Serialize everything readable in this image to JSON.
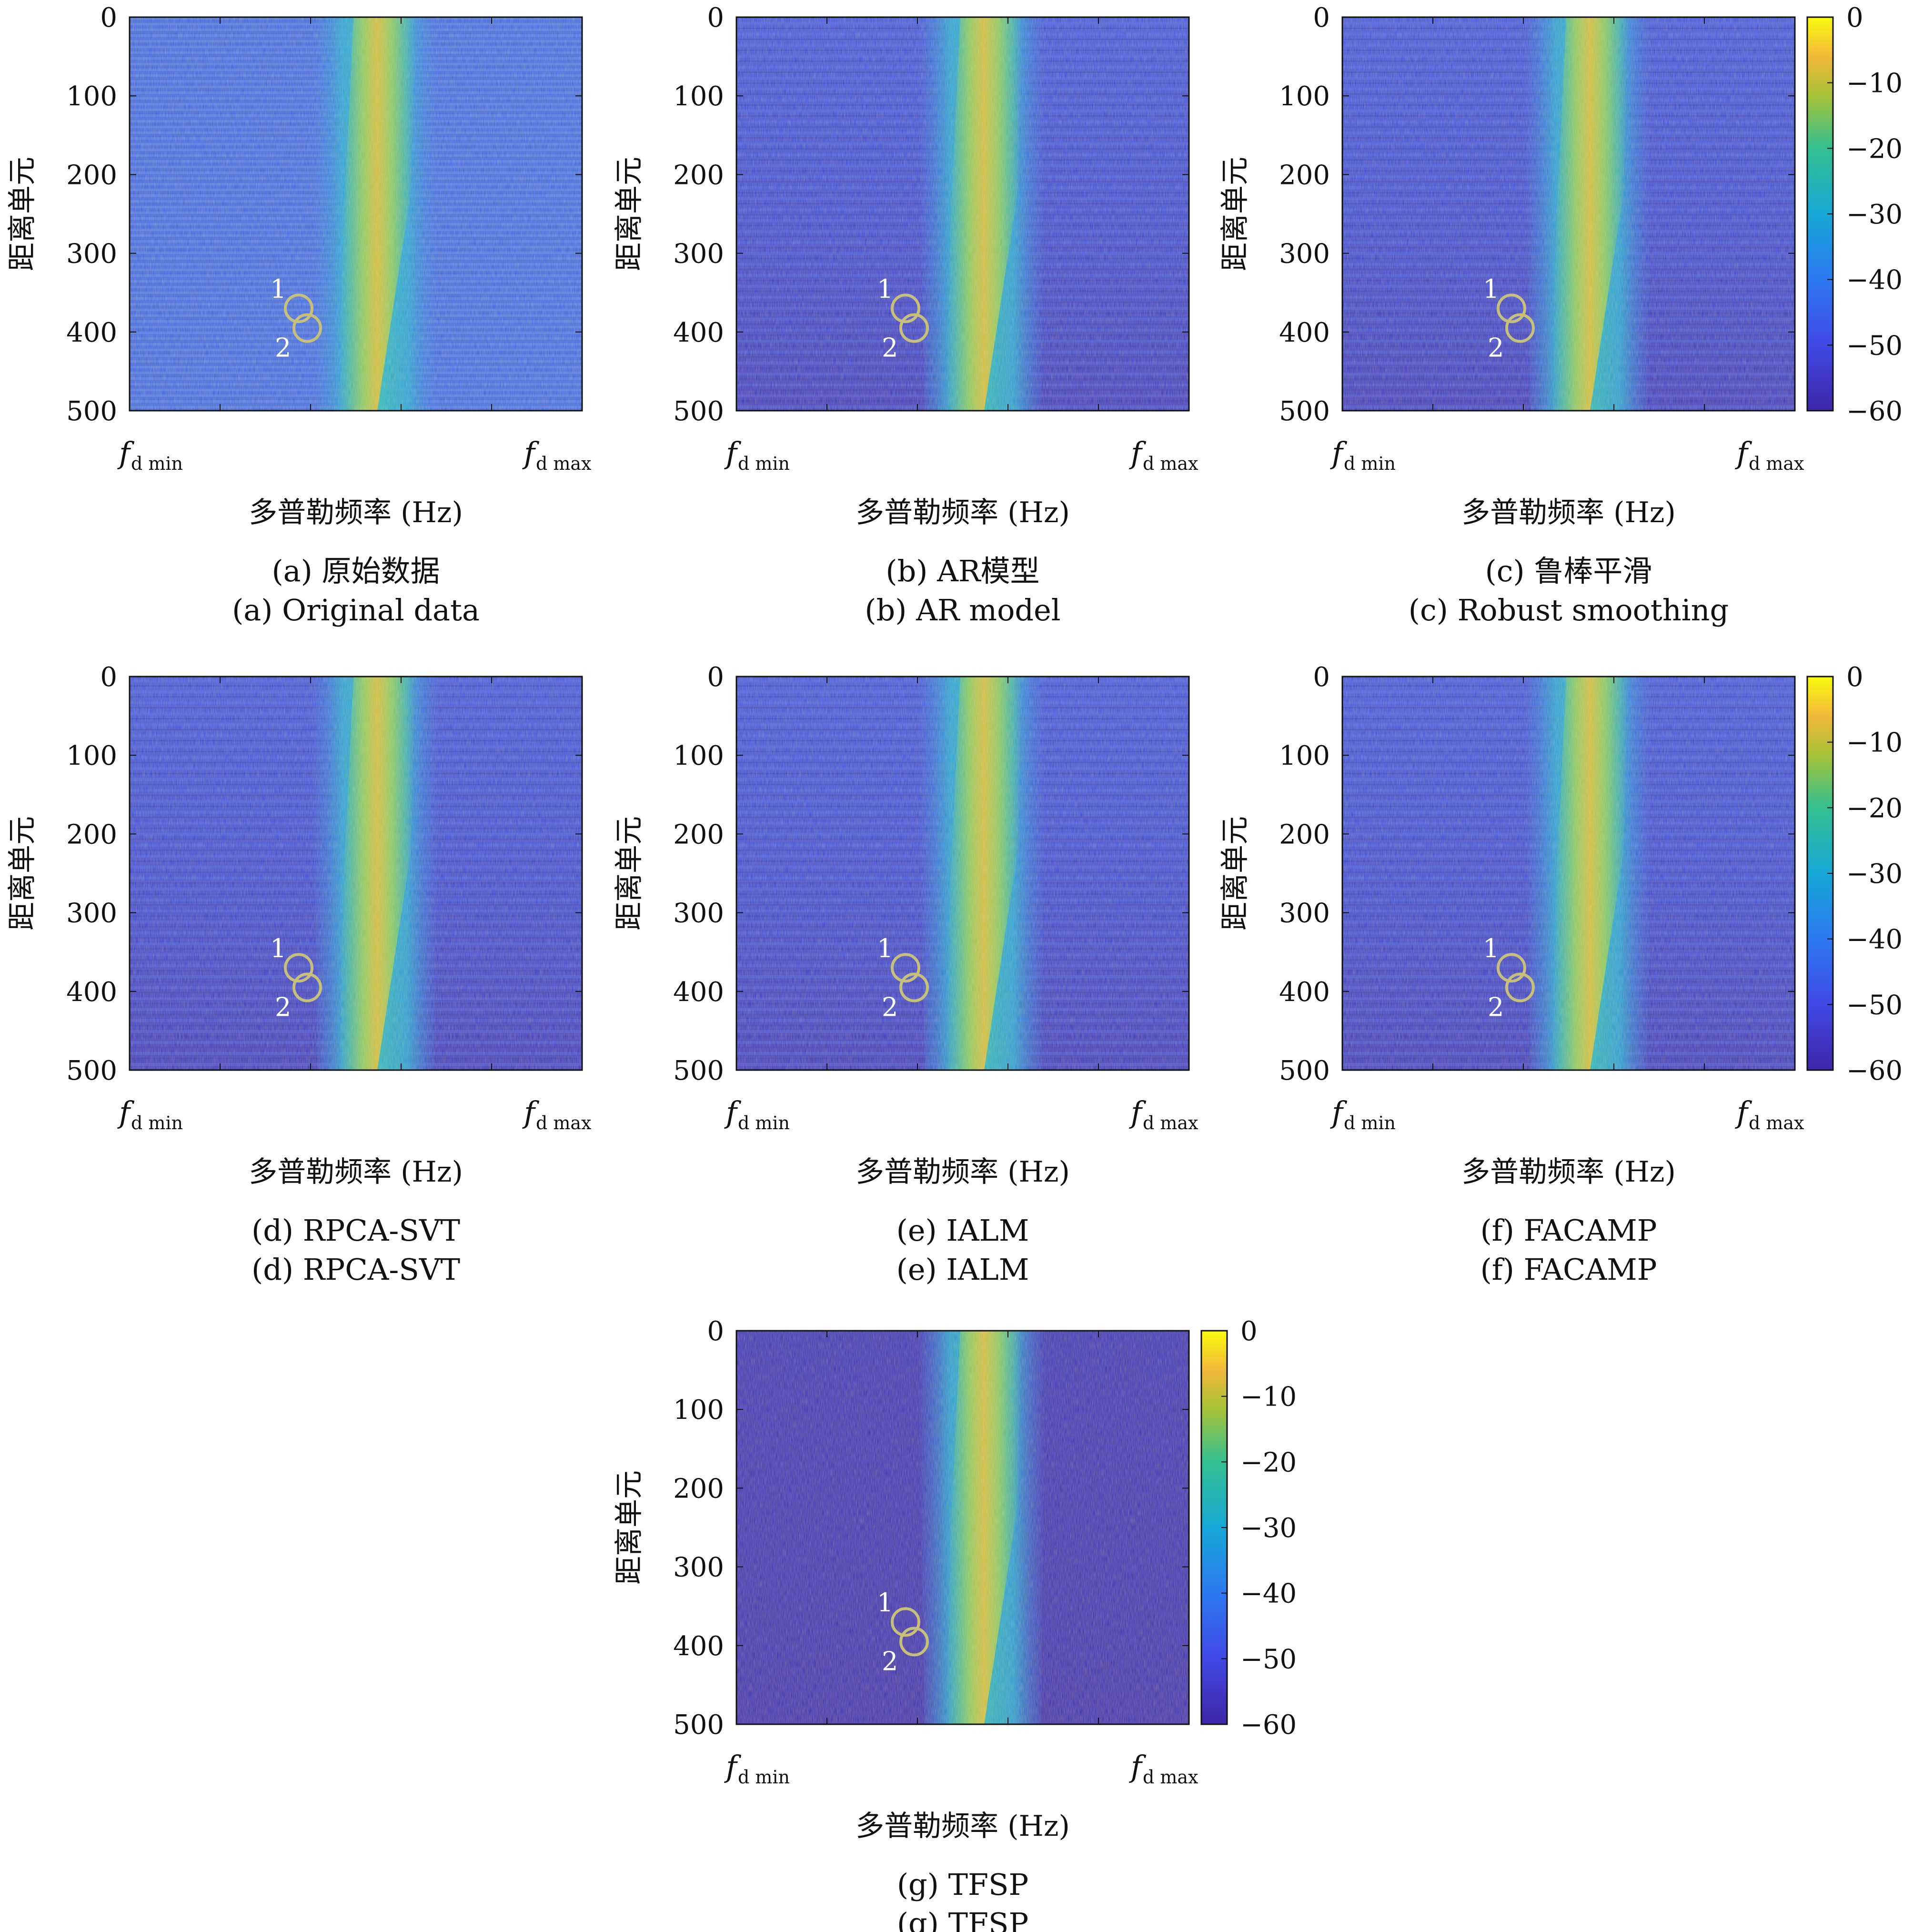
{
  "chart_data": {
    "type": "heatmap",
    "shared": {
      "ylabel": "距离单元",
      "xlabel": "多普勒频率 (Hz)",
      "yticks": [
        "0",
        "100",
        "200",
        "300",
        "400",
        "500"
      ],
      "ylim": [
        0,
        500
      ],
      "xtick_min": {
        "base": "f",
        "sub": "d min"
      },
      "xtick_max": {
        "base": "f",
        "sub": "d max"
      },
      "colorbar_ticks": [
        "0",
        "−10",
        "−20",
        "−30",
        "−40",
        "−50",
        "−60"
      ],
      "colorbar_range": [
        -60,
        0
      ],
      "colormap": "parula",
      "colors": {
        "low": "#3e26a8",
        "mid_low": "#2d6ce8",
        "mid": "#1fb7c0",
        "mid_high": "#7ccb60",
        "high": "#f9fb0e",
        "circle": "#c8c07a"
      },
      "target_marks": [
        {
          "label": "1",
          "range_cell": 370
        },
        {
          "label": "2",
          "range_cell": 395
        }
      ]
    },
    "panels": [
      {
        "caption_cn": "(a) 原始数据",
        "caption_en": "(a) Original data",
        "colorbar": false
      },
      {
        "caption_cn": "(b) AR模型",
        "caption_en": "(b) AR model",
        "colorbar": false
      },
      {
        "caption_cn": "(c) 鲁棒平滑",
        "caption_en": "(c) Robust smoothing",
        "colorbar": true
      },
      {
        "caption_cn": "(d) RPCA-SVT",
        "caption_en": "(d) RPCA-SVT",
        "colorbar": false
      },
      {
        "caption_cn": "(e) IALM",
        "caption_en": "(e) IALM",
        "colorbar": false
      },
      {
        "caption_cn": "(f) FACAMP",
        "caption_en": "(f) FACAMP",
        "colorbar": true
      },
      {
        "caption_cn": "(g) TFSP",
        "caption_en": "(g) TFSP",
        "colorbar": true
      }
    ]
  }
}
